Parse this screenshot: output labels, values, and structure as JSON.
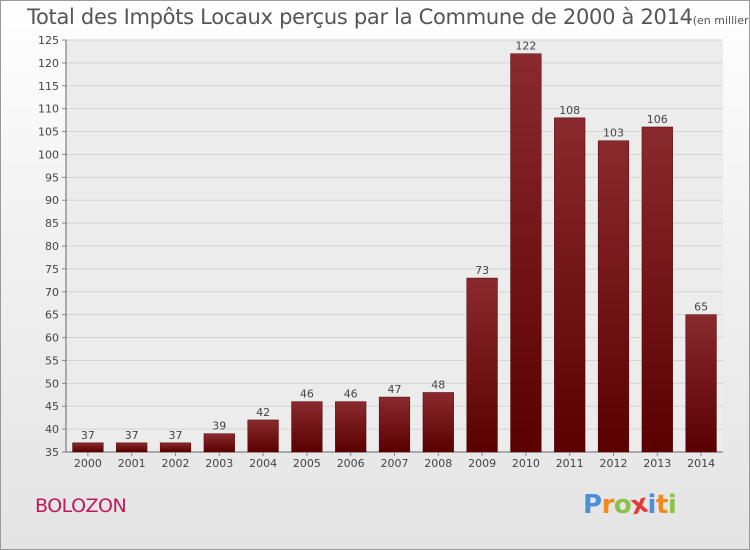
{
  "header": {
    "title": "Total des Impôts Locaux perçus par la Commune de 2000 à 2014",
    "unit": "(en milliers d'€)"
  },
  "footer": {
    "commune": "BOLOZON",
    "brand": [
      "P",
      "r",
      "o",
      "x",
      "i",
      "t",
      "i"
    ]
  },
  "colors": {
    "bar_top": "#8a2a2e",
    "bar_bottom": "#5a0000",
    "grid": "#d4d4d4",
    "plot_bg": "#ececec",
    "brand": [
      "#4a8fd8",
      "#f08a1c",
      "#8bc34a",
      "#e53935",
      "#4a8fd8",
      "#f08a1c",
      "#8bc34a"
    ]
  },
  "chart_data": {
    "type": "bar",
    "title": "Total des Impôts Locaux perçus par la Commune de 2000 à 2014",
    "xlabel": "",
    "ylabel": "",
    "categories": [
      "2000",
      "2001",
      "2002",
      "2003",
      "2004",
      "2005",
      "2006",
      "2007",
      "2008",
      "2009",
      "2010",
      "2011",
      "2012",
      "2013",
      "2014"
    ],
    "values": [
      37,
      37,
      37,
      39,
      42,
      46,
      46,
      47,
      48,
      73,
      122,
      108,
      103,
      106,
      65
    ],
    "ylim": [
      35,
      125
    ],
    "yticks": [
      35,
      40,
      45,
      50,
      55,
      60,
      65,
      70,
      75,
      80,
      85,
      90,
      95,
      100,
      105,
      110,
      115,
      120,
      125
    ],
    "grid": true,
    "data_labels": true
  }
}
